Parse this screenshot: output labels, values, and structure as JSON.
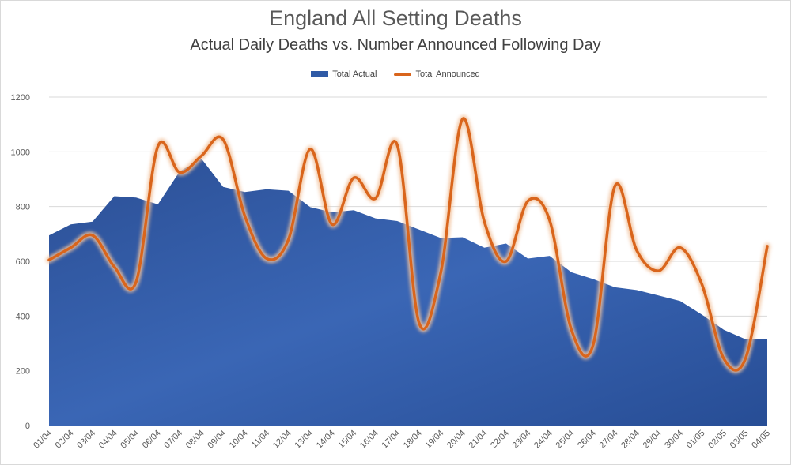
{
  "chart_data": {
    "type": "area",
    "title": "England All Setting Deaths",
    "subtitle": "Actual Daily Deaths vs. Number Announced Following Day",
    "categories": [
      "01/04",
      "02/04",
      "03/04",
      "04/04",
      "05/04",
      "06/04",
      "07/04",
      "08/04",
      "09/04",
      "10/04",
      "11/04",
      "12/04",
      "13/04",
      "14/04",
      "15/04",
      "16/04",
      "17/04",
      "18/04",
      "19/04",
      "20/04",
      "21/04",
      "22/04",
      "23/04",
      "24/04",
      "25/04",
      "26/04",
      "27/04",
      "28/04",
      "29/04",
      "30/04",
      "01/05",
      "02/05",
      "03/05",
      "04/05"
    ],
    "series": [
      {
        "name": "Total Actual",
        "kind": "area",
        "color": "#2f5aa6",
        "values": [
          695,
          735,
          745,
          838,
          833,
          808,
          928,
          975,
          872,
          853,
          863,
          858,
          798,
          779,
          787,
          757,
          747,
          716,
          685,
          688,
          650,
          665,
          610,
          620,
          560,
          535,
          505,
          495,
          475,
          455,
          405,
          350,
          315,
          315
        ]
      },
      {
        "name": "Total Announced",
        "kind": "line",
        "color": "#d9651c",
        "values": [
          605,
          650,
          695,
          580,
          525,
          1020,
          925,
          985,
          1045,
          765,
          610,
          680,
          1010,
          735,
          905,
          830,
          1025,
          375,
          560,
          1120,
          745,
          600,
          820,
          750,
          350,
          295,
          875,
          640,
          565,
          650,
          515,
          245,
          245,
          655
        ]
      }
    ],
    "y_axis": {
      "min": 0,
      "max": 1200,
      "ticks": [
        0,
        200,
        400,
        600,
        800,
        1000,
        1200
      ]
    },
    "grid": true,
    "legend_position": "top"
  }
}
